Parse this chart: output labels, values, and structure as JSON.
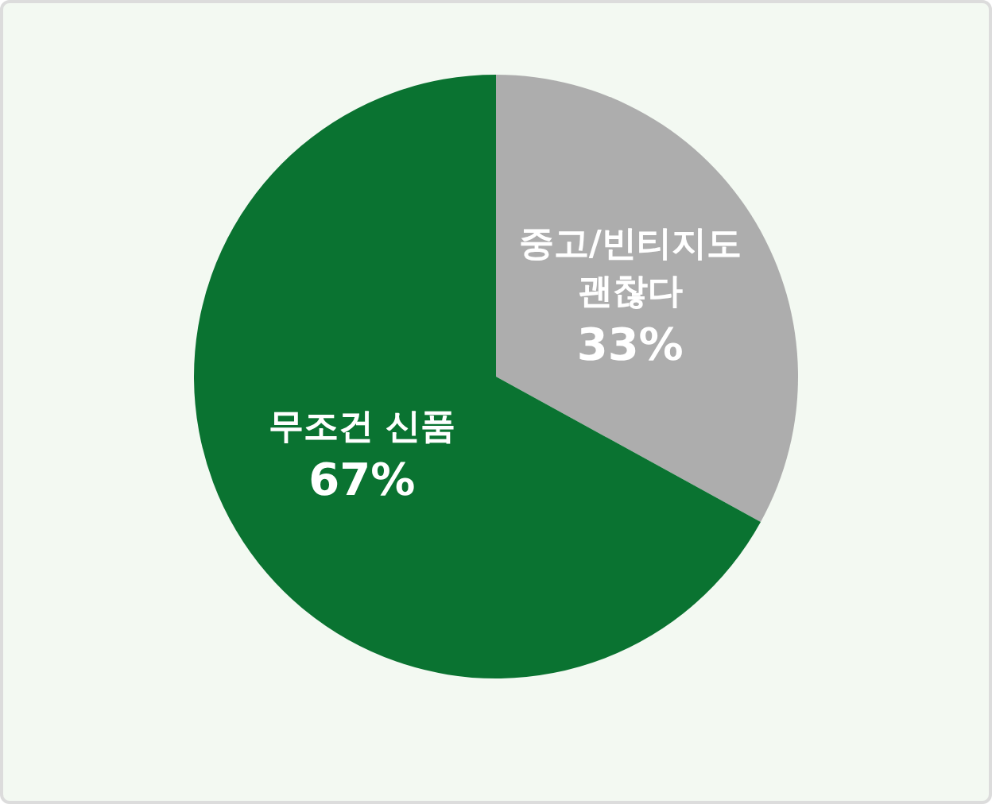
{
  "chart_data": {
    "type": "pie",
    "categories": [
      "중고/빈티지도 괜찮다",
      "무조건 신품"
    ],
    "values": [
      33,
      67
    ],
    "colors": [
      "#adadad",
      "#0a7331"
    ],
    "value_labels": [
      "33%",
      "67%"
    ]
  }
}
